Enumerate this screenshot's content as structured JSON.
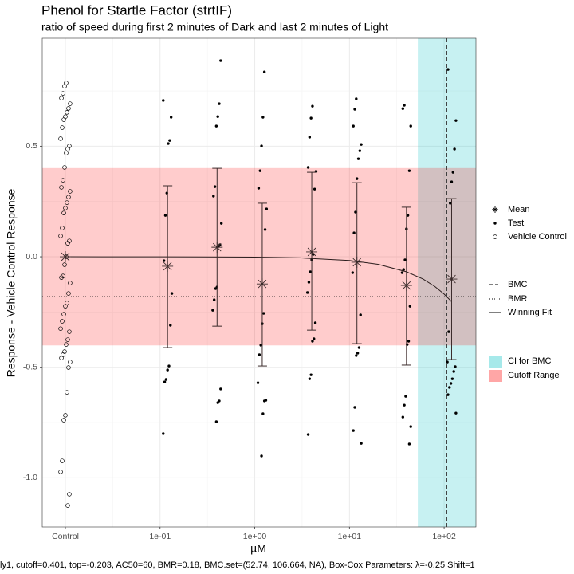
{
  "chart_data": {
    "type": "dose-response",
    "title": "Phenol for Startle Factor (strtIF)",
    "subtitle": "ratio of speed during first 2 minutes of Dark and last 2 minutes of Light",
    "x_label": "µM",
    "y_label": "Response - Vehicle Control Response",
    "caption": "ly1, cutoff=0.401, top=-0.203, AC50=60, BMR=0.18, BMC.set=(52.74, 106.664, NA), Box-Cox Parameters: λ=-0.25 Shift=1",
    "log_x": true,
    "grid": true,
    "xlim": [
      0.0057,
      216.8
    ],
    "xticks": [
      {
        "value": 0.01,
        "label": "Control"
      },
      {
        "value": 0.1,
        "label": "1e-01"
      },
      {
        "value": 1,
        "label": "1e+00"
      },
      {
        "value": 10,
        "label": "1e+01"
      },
      {
        "value": 100,
        "label": "1e+02"
      }
    ],
    "ylim": [
      -1.222,
      0.988
    ],
    "yticks": [
      0.5,
      {
        "value": 0,
        "label": "0.0"
      },
      -0.5,
      {
        "value": -1,
        "label": "-1.0"
      }
    ],
    "ci": {
      "name": "CI for BMC",
      "range": [
        52.74,
        null
      ],
      "color": "#00bfc4"
    },
    "cutoff": {
      "name": "Cutoff Range",
      "range": [
        -0.401,
        0.401
      ],
      "color": "#ff0000"
    },
    "bmc": {
      "name": "BMC",
      "value": 106.664
    },
    "bmr": {
      "name": "BMR",
      "value": -0.18
    },
    "fit": {
      "name": "Winning Fit",
      "x": [
        0.01,
        0.1,
        1,
        3,
        10,
        20,
        40,
        60,
        80,
        100,
        120
      ],
      "values": [
        0,
        -0.0002,
        -0.0017,
        -0.005,
        -0.017,
        -0.034,
        -0.068,
        -0.101,
        -0.135,
        -0.169,
        -0.203
      ]
    },
    "series": [
      {
        "name": "Mean",
        "color": "#3b2b2b",
        "x": [
          0.01,
          0.12,
          0.4,
          1.2,
          4,
          12,
          40,
          120
        ],
        "values": [
          0,
          -0.043,
          0.043,
          -0.123,
          0.022,
          -0.025,
          -0.13,
          -0.101
        ],
        "lower": [
          null,
          -0.411,
          -0.314,
          -0.494,
          -0.332,
          -0.393,
          -0.49,
          -0.465
        ],
        "upper": [
          null,
          0.321,
          0.4,
          0.242,
          0.382,
          0.335,
          0.224,
          0.263
        ]
      },
      {
        "name": "Test",
        "color": "#000000",
        "groups": [
          {
            "x": 0.12,
            "values": [
              0.707,
              0.631,
              0.526,
              0.512,
              0.288,
              0.187,
              -0.018,
              -0.166,
              -0.31,
              -0.494,
              -0.512,
              -0.555,
              -0.566,
              -0.8
            ]
          },
          {
            "x": 0.4,
            "values": [
              0.887,
              0.692,
              0.634,
              0.591,
              0.317,
              0.274,
              0.151,
              0.054,
              0.047,
              -0.137,
              -0.144,
              -0.195,
              -0.242,
              -0.598,
              -0.652,
              -0.66,
              -0.746
            ]
          },
          {
            "x": 1.2,
            "values": [
              0.836,
              0.631,
              0.501,
              0.389,
              0.31,
              0.216,
              0.123,
              -0.256,
              -0.303,
              -0.4,
              -0.443,
              -0.57,
              -0.649,
              -0.652,
              -0.71,
              -0.901
            ]
          },
          {
            "x": 4,
            "values": [
              0.681,
              0.627,
              0.541,
              0.404,
              0.386,
              0.306,
              0.011,
              -0.014,
              -0.068,
              -0.115,
              -0.162,
              -0.299,
              -0.371,
              -0.382,
              -0.534,
              -0.552,
              -0.804
            ]
          },
          {
            "x": 12,
            "values": [
              0.714,
              0.667,
              0.591,
              0.508,
              0.479,
              0.443,
              0.353,
              0.202,
              0.108,
              -0.072,
              -0.263,
              -0.411,
              -0.436,
              -0.447,
              -0.681,
              -0.786,
              -0.844
            ]
          },
          {
            "x": 40,
            "values": [
              0.685,
              0.67,
              0.591,
              0.389,
              0.187,
              0.126,
              -0.014,
              -0.058,
              -0.072,
              -0.224,
              -0.382,
              -0.397,
              -0.631,
              -0.671,
              -0.725,
              -0.768,
              -0.847
            ]
          },
          {
            "x": 120,
            "values": [
              0.847,
              0.616,
              0.487,
              0.382,
              0.339,
              0.242,
              -0.339,
              -0.476,
              -0.497,
              -0.519,
              -0.552,
              -0.573,
              -0.591,
              -0.624,
              -0.707
            ]
          }
        ]
      },
      {
        "name": "Vehicle Control",
        "color": "#000000",
        "x": 0.01,
        "values": [
          0.786,
          0.771,
          0.739,
          0.717,
          0.692,
          0.671,
          0.653,
          0.634,
          0.62,
          0.584,
          0.534,
          0.501,
          0.487,
          0.469,
          0.404,
          0.346,
          0.314,
          0.296,
          0.27,
          0.245,
          0.22,
          0.198,
          0.13,
          0.094,
          0.072,
          0.061,
          0,
          -0.036,
          -0.087,
          -0.094,
          -0.119,
          -0.166,
          -0.209,
          -0.224,
          -0.26,
          -0.292,
          -0.325,
          -0.339,
          -0.375,
          -0.397,
          -0.429,
          -0.443,
          -0.458,
          -0.476,
          -0.501,
          -0.613,
          -0.717,
          -0.739,
          -0.923,
          -0.973,
          -1.074,
          -1.125
        ]
      }
    ]
  }
}
